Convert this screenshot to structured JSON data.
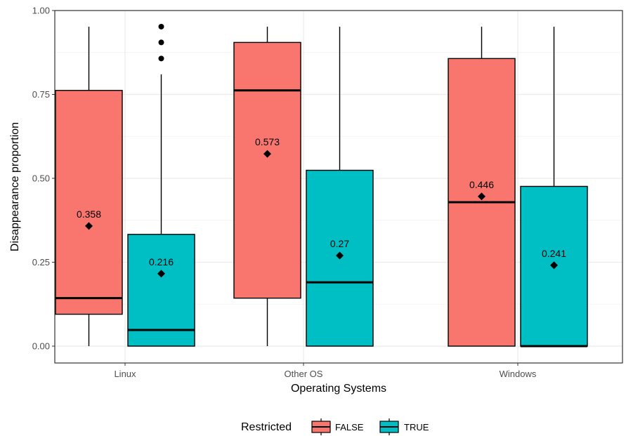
{
  "chart_data": {
    "type": "boxplot",
    "xlabel": "Operating Systems",
    "ylabel": "Disappearance proportion",
    "ylim": [
      0,
      1
    ],
    "y_ticks": [
      "0.00",
      "0.25",
      "0.50",
      "0.75",
      "1.00"
    ],
    "y_tick_values": [
      0,
      0.25,
      0.5,
      0.75,
      1.0
    ],
    "categories": [
      "Linux",
      "Other OS",
      "Windows"
    ],
    "grid": true,
    "legend": {
      "title": "Restricted",
      "position": "bottom"
    },
    "series": [
      {
        "name": "FALSE",
        "color": "#F8766D",
        "boxes": [
          {
            "whisker_low": 0.0,
            "q1": 0.095,
            "median": 0.143,
            "q3": 0.762,
            "whisker_high": 0.952,
            "mean": 0.358,
            "mean_label": "0.358",
            "outliers": []
          },
          {
            "whisker_low": 0.0,
            "q1": 0.143,
            "median": 0.762,
            "q3": 0.905,
            "whisker_high": 0.952,
            "mean": 0.573,
            "mean_label": "0.573",
            "outliers": []
          },
          {
            "whisker_low": 0.0,
            "q1": 0.0,
            "median": 0.429,
            "q3": 0.857,
            "whisker_high": 0.952,
            "mean": 0.446,
            "mean_label": "0.446",
            "outliers": []
          }
        ]
      },
      {
        "name": "TRUE",
        "color": "#00BFC4",
        "boxes": [
          {
            "whisker_low": 0.0,
            "q1": 0.0,
            "median": 0.048,
            "q3": 0.333,
            "whisker_high": 0.81,
            "mean": 0.216,
            "mean_label": "0.216",
            "outliers": [
              0.857,
              0.905,
              0.952
            ]
          },
          {
            "whisker_low": 0.0,
            "q1": 0.0,
            "median": 0.19,
            "q3": 0.524,
            "whisker_high": 0.952,
            "mean": 0.27,
            "mean_label": "0.27",
            "outliers": []
          },
          {
            "whisker_low": 0.0,
            "q1": 0.0,
            "median": 0.0,
            "q3": 0.476,
            "whisker_high": 0.952,
            "mean": 0.241,
            "mean_label": "0.241",
            "outliers": []
          }
        ]
      }
    ]
  }
}
